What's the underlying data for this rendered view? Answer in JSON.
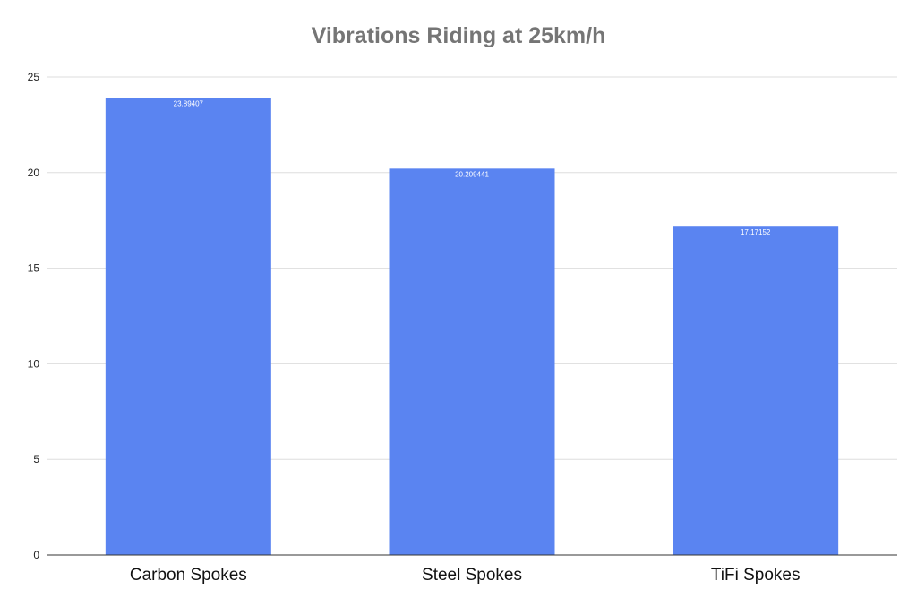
{
  "chart_data": {
    "type": "bar",
    "title": "Vibrations Riding at 25km/h",
    "xlabel": "",
    "ylabel": "",
    "categories": [
      "Carbon Spokes",
      "Steel Spokes",
      "TiFi Spokes"
    ],
    "values": [
      23.89407,
      20.209441,
      17.17152
    ],
    "data_labels": [
      "23.89407",
      "20.209441",
      "17.17152"
    ],
    "ylim": [
      0,
      25
    ],
    "yticks": [
      0,
      5,
      10,
      15,
      20,
      25
    ],
    "grid": true,
    "legend": "none",
    "bar_color": "#5a84f1",
    "grid_color": "#dddddd",
    "axis_color": "#333333",
    "title_color": "#757575"
  }
}
